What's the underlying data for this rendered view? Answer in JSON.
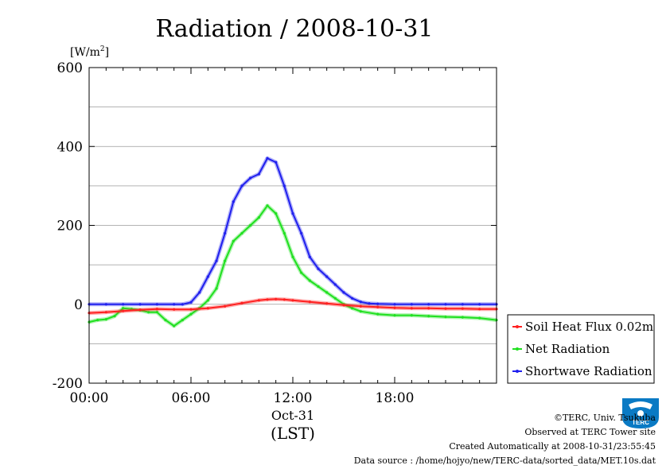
{
  "chart_data": {
    "type": "line",
    "title": "Radiation / 2008-10-31",
    "ylabel": "[W/m2]",
    "ylabel_base": "[W/m",
    "ylabel_sup": "2",
    "ylabel_close": "]",
    "xlabel": "(LST)",
    "date_label": "Oct-31",
    "ylim": [
      -200,
      600
    ],
    "xlim": [
      0,
      24
    ],
    "y_ticks": [
      -200,
      0,
      200,
      400,
      600
    ],
    "x_ticks": [
      0,
      6,
      12,
      18
    ],
    "x_tick_labels": [
      "00:00",
      "06:00",
      "12:00",
      "18:00"
    ],
    "grid": true,
    "legend_position": "right",
    "series": [
      {
        "name": "Soil Heat Flux 0.02m",
        "color": "#ff2020",
        "x": [
          0,
          1,
          2,
          3,
          4,
          5,
          6,
          7,
          8,
          9,
          10,
          10.5,
          11,
          11.5,
          12,
          13,
          14,
          15,
          16,
          17,
          18,
          19,
          20,
          21,
          22,
          23,
          24
        ],
        "y": [
          -22,
          -20,
          -17,
          -14,
          -12,
          -13,
          -13,
          -10,
          -5,
          3,
          10,
          12,
          13,
          12,
          10,
          6,
          2,
          -2,
          -5,
          -7,
          -9,
          -10,
          -10,
          -11,
          -11,
          -12,
          -12
        ]
      },
      {
        "name": "Net Radiation",
        "color": "#20e020",
        "x": [
          0,
          0.5,
          1,
          1.5,
          2,
          2.5,
          3,
          3.5,
          4,
          4.5,
          5,
          5.5,
          6,
          6.5,
          7,
          7.5,
          8,
          8.5,
          9,
          9.5,
          10,
          10.5,
          11,
          11.5,
          12,
          12.5,
          13,
          13.5,
          14,
          14.5,
          15,
          15.5,
          16,
          17,
          18,
          19,
          20,
          21,
          22,
          23,
          24
        ],
        "y": [
          -45,
          -40,
          -38,
          -30,
          -10,
          -12,
          -15,
          -20,
          -20,
          -40,
          -55,
          -40,
          -25,
          -10,
          10,
          40,
          110,
          160,
          180,
          200,
          220,
          250,
          230,
          180,
          120,
          80,
          60,
          45,
          30,
          15,
          0,
          -10,
          -18,
          -25,
          -28,
          -28,
          -30,
          -32,
          -33,
          -35,
          -40
        ]
      },
      {
        "name": "Shortwave Radiation",
        "color": "#2020ee",
        "x": [
          0,
          1,
          2,
          3,
          4,
          5,
          5.5,
          6,
          6.5,
          7,
          7.5,
          8,
          8.5,
          9,
          9.5,
          10,
          10.5,
          11,
          11.5,
          12,
          12.5,
          13,
          13.5,
          14,
          14.5,
          15,
          15.5,
          16,
          16.5,
          17,
          18,
          19,
          20,
          21,
          22,
          23,
          24
        ],
        "y": [
          0,
          0,
          0,
          0,
          0,
          0,
          0,
          5,
          30,
          70,
          110,
          180,
          260,
          300,
          320,
          330,
          370,
          360,
          300,
          230,
          180,
          120,
          90,
          70,
          50,
          30,
          15,
          6,
          2,
          1,
          0,
          0,
          0,
          0,
          0,
          0,
          0
        ]
      }
    ]
  },
  "credits": {
    "copyright": "©TERC, Univ. Tsukuba",
    "observed": "Observed at TERC Tower site",
    "created": "Created Automatically at 2008-10-31/23:55:45",
    "source": "Data source : /home/hojyo/new/TERC-data/sorted_data/MET.10s.dat"
  },
  "logo": {
    "text": "TERC",
    "color": "#0a7ac4"
  }
}
